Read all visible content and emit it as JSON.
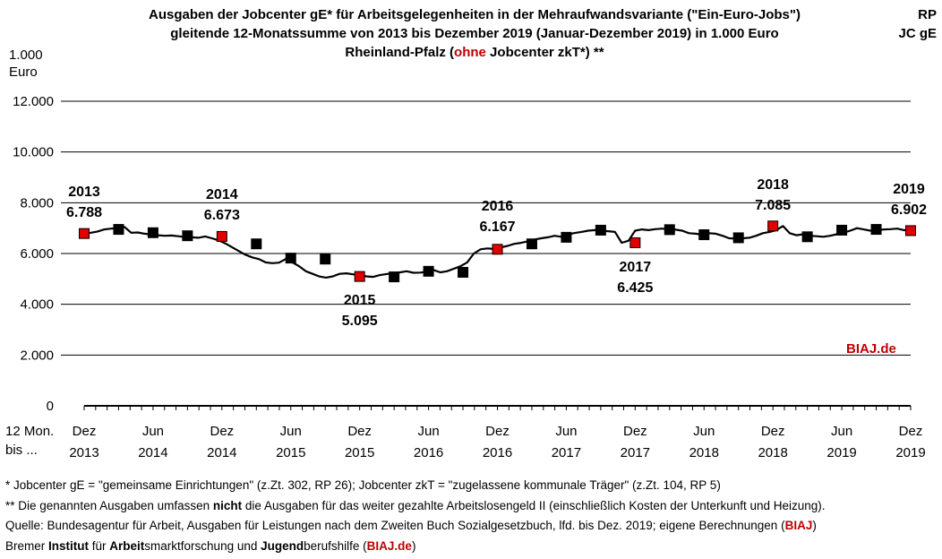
{
  "header": {
    "title_line1": "Ausgaben der Jobcenter gE* für Arbeitsgelegenheiten in der Mehraufwandsvariante (\"Ein-Euro-Jobs\")",
    "title_line2": "gleitende 12-Monatssumme von 2013 bis Dezember 2019 (Januar-Dezember 2019) in 1.000 Euro",
    "title_line3_pre": "Rheinland-Pfalz (",
    "title_line3_red": "ohne",
    "title_line3_post": " Jobcenter zkT*) **",
    "corner_line1": "RP",
    "corner_line2": "JC gE",
    "yunit_line1": "1.000",
    "yunit_line2": "Euro",
    "xhead_line1": "12 Mon.",
    "xhead_line2": "bis ...",
    "watermark": "BIAJ.de"
  },
  "chart_data": {
    "type": "line",
    "ylim": [
      0,
      12000
    ],
    "yticks": [
      0,
      2000,
      4000,
      6000,
      8000,
      10000,
      12000
    ],
    "ytick_labels": [
      "0",
      "2.000",
      "4.000",
      "6.000",
      "8.000",
      "10.000",
      "12.000"
    ],
    "grid": true,
    "xtick_labels": [
      {
        "m": 0,
        "l1": "Dez",
        "l2": "2013"
      },
      {
        "m": 6,
        "l1": "Jun",
        "l2": "2014"
      },
      {
        "m": 12,
        "l1": "Dez",
        "l2": "2014"
      },
      {
        "m": 18,
        "l1": "Jun",
        "l2": "2015"
      },
      {
        "m": 24,
        "l1": "Dez",
        "l2": "2015"
      },
      {
        "m": 30,
        "l1": "Jun",
        "l2": "2016"
      },
      {
        "m": 36,
        "l1": "Dez",
        "l2": "2016"
      },
      {
        "m": 42,
        "l1": "Jun",
        "l2": "2017"
      },
      {
        "m": 48,
        "l1": "Dez",
        "l2": "2017"
      },
      {
        "m": 54,
        "l1": "Jun",
        "l2": "2018"
      },
      {
        "m": 60,
        "l1": "Dez",
        "l2": "2018"
      },
      {
        "m": 66,
        "l1": "Jun",
        "l2": "2019"
      },
      {
        "m": 72,
        "l1": "Dez",
        "l2": "2019"
      }
    ],
    "series": [
      {
        "values": [
          6788,
          6820,
          6870,
          6950,
          6980,
          7000,
          7050,
          6820,
          6830,
          6780,
          6750,
          6720,
          6700,
          6710,
          6680,
          6650,
          6640,
          6620,
          6673,
          6600,
          6520,
          6400,
          6250,
          6100,
          5950,
          5850,
          5780,
          5650,
          5620,
          5640,
          5780,
          5650,
          5500,
          5300,
          5200,
          5095,
          5050,
          5100,
          5200,
          5220,
          5180,
          5150,
          5100,
          5080,
          5150,
          5190,
          5230,
          5260,
          5300,
          5240,
          5250,
          5280,
          5350,
          5260,
          5300,
          5400,
          5500,
          5650,
          6000,
          6167,
          6200,
          6180,
          6240,
          6300,
          6380,
          6420,
          6480,
          6550,
          6600,
          6640,
          6700,
          6660,
          6750,
          6810,
          6850,
          6900,
          6920,
          6900,
          6880,
          6850,
          6425,
          6500,
          6900,
          6950,
          6920,
          6960,
          6980,
          6950,
          6940,
          6900,
          6800,
          6780,
          6740,
          6800,
          6780,
          6700,
          6600,
          6590,
          6600,
          6620,
          6700,
          6800,
          6850,
          6920,
          7085,
          6800,
          6720,
          6760,
          6700,
          6680,
          6660,
          6700,
          6760,
          6820,
          6900,
          7000,
          6950,
          6900,
          6920,
          6950,
          6960,
          6980,
          6920,
          6902
        ]
      }
    ],
    "markers": [
      {
        "m": 0,
        "v": 6788,
        "red": true
      },
      {
        "m": 3,
        "v": 6950,
        "red": false
      },
      {
        "m": 6,
        "v": 6820,
        "red": false
      },
      {
        "m": 9,
        "v": 6700,
        "red": false
      },
      {
        "m": 12,
        "v": 6673,
        "red": true
      },
      {
        "m": 15,
        "v": 6380,
        "red": false
      },
      {
        "m": 18,
        "v": 5820,
        "red": false
      },
      {
        "m": 21,
        "v": 5780,
        "red": false
      },
      {
        "m": 24,
        "v": 5095,
        "red": true
      },
      {
        "m": 27,
        "v": 5080,
        "red": false
      },
      {
        "m": 30,
        "v": 5300,
        "red": false
      },
      {
        "m": 33,
        "v": 5260,
        "red": false
      },
      {
        "m": 36,
        "v": 6167,
        "red": true
      },
      {
        "m": 39,
        "v": 6380,
        "red": false
      },
      {
        "m": 42,
        "v": 6640,
        "red": false
      },
      {
        "m": 45,
        "v": 6920,
        "red": false
      },
      {
        "m": 48,
        "v": 6425,
        "red": true
      },
      {
        "m": 51,
        "v": 6940,
        "red": false
      },
      {
        "m": 54,
        "v": 6740,
        "red": false
      },
      {
        "m": 57,
        "v": 6620,
        "red": false
      },
      {
        "m": 60,
        "v": 7085,
        "red": true
      },
      {
        "m": 63,
        "v": 6660,
        "red": false
      },
      {
        "m": 66,
        "v": 6920,
        "red": false
      },
      {
        "m": 69,
        "v": 6950,
        "red": false
      },
      {
        "m": 72,
        "v": 6902,
        "red": true
      }
    ],
    "data_labels": [
      {
        "m": 0,
        "year": "2013",
        "value": "6.788",
        "pos": "above"
      },
      {
        "m": 12,
        "year": "2014",
        "value": "6.673",
        "pos": "above"
      },
      {
        "m": 24,
        "year": "2015",
        "value": "5.095",
        "pos": "below"
      },
      {
        "m": 36,
        "year": "2016",
        "value": "6.167",
        "pos": "above"
      },
      {
        "m": 48,
        "year": "2017",
        "value": "6.425",
        "pos": "below"
      },
      {
        "m": 60,
        "year": "2018",
        "value": "7.085",
        "pos": "above"
      },
      {
        "m": 72,
        "year": "2019",
        "value": "6.902",
        "pos": "above"
      }
    ]
  },
  "footnotes": {
    "f1": "*    Jobcenter gE = \"gemeinsame Einrichtungen\" (z.Zt. 302, RP 26); Jobcenter zkT = \"zugelassene kommunale Träger\" (z.Zt. 104, RP 5)",
    "f2_pre": "** Die genannten Ausgaben umfassen ",
    "f2_bold": "nicht",
    "f2_post": " die Ausgaben für das weiter gezahlte Arbeitslosengeld II (einschließlich Kosten der Unterkunft und Heizung).",
    "f3_pre": "Quelle: Bundesagentur für Arbeit, Ausgaben für Leistungen nach dem Zweiten Buch Sozialgesetzbuch, lfd. bis Dez. 2019; eigene Berechnungen (",
    "f3_red": "BIAJ",
    "f3_post": ")",
    "f4_a": "Bremer ",
    "f4_b": "Institut",
    "f4_c": " für ",
    "f4_d": "Arbeit",
    "f4_e": "smarktforschung und ",
    "f4_f": "Jugend",
    "f4_g": "berufshilfe (",
    "f4_h": "BIAJ.de",
    "f4_i": ")"
  }
}
